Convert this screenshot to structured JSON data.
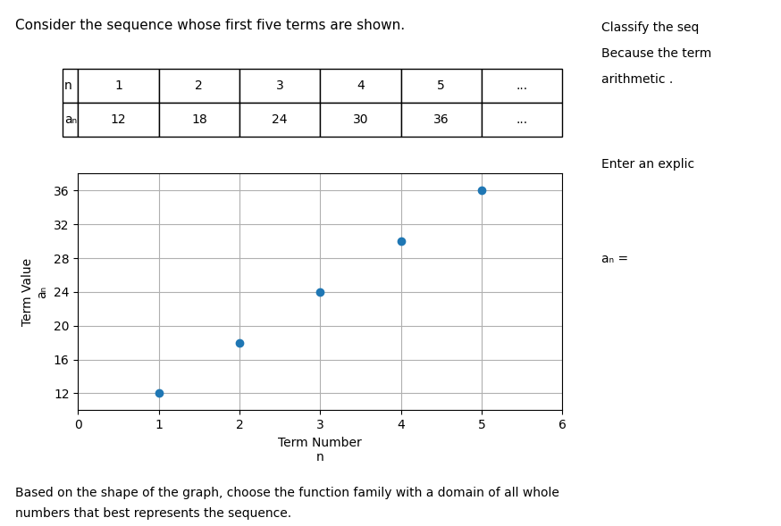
{
  "chart_data": {
    "type": "scatter",
    "title": "Consider the sequence whose first five terms are shown.",
    "x_label": "Term Number\nn",
    "y_label": "Term Value\naₙ",
    "x": [
      1,
      2,
      3,
      4,
      5
    ],
    "values": [
      12,
      18,
      24,
      30,
      36
    ],
    "xlim": [
      0,
      6
    ],
    "xticks": [
      0,
      1,
      2,
      3,
      4,
      5,
      6
    ],
    "ylim": [
      10,
      38
    ],
    "yticks": [
      12,
      16,
      20,
      24,
      28,
      32,
      36
    ],
    "grid": true,
    "marker": "circle",
    "table": {
      "row_labels": [
        "n",
        "aₙ"
      ],
      "rows": [
        [
          "1",
          "2",
          "3",
          "4",
          "5",
          "..."
        ],
        [
          "12",
          "18",
          "24",
          "30",
          "36",
          "..."
        ]
      ]
    },
    "side_annotations": [
      "Classify the seq",
      "Because the term",
      "arithmetic .",
      "Enter an explic",
      "aₙ ="
    ],
    "bottom_annotations": [
      "Based on the shape of the graph, choose the function family with a domain of all whole",
      "numbers that best represents the sequence."
    ]
  }
}
